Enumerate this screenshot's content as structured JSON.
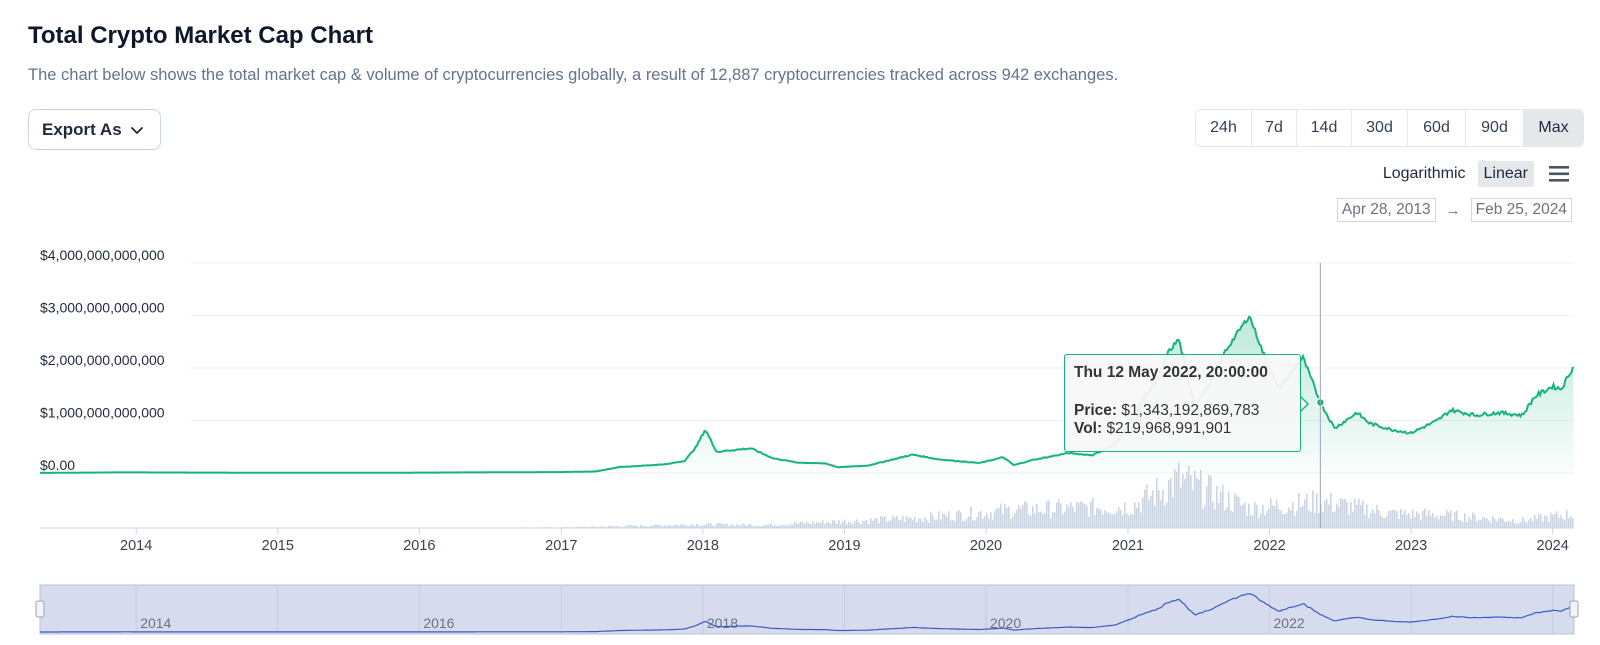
{
  "header": {
    "title": "Total Crypto Market Cap Chart",
    "subtitle": "The chart below shows the total market cap & volume of cryptocurrencies globally, a result of 12,887 cryptocurrencies tracked across 942 exchanges."
  },
  "toolbar": {
    "export_label": "Export As",
    "ranges": [
      "24h",
      "7d",
      "14d",
      "30d",
      "60d",
      "90d",
      "Max"
    ],
    "active_range": "Max",
    "scale_options": [
      "Logarithmic",
      "Linear"
    ],
    "active_scale": "Linear",
    "date_from": "Apr 28, 2013",
    "date_arrow": "→",
    "date_to": "Feb 25, 2024",
    "menu_icon": "hamburger-menu-icon"
  },
  "tooltip": {
    "heading": "Thu 12 May 2022, 20:00:00",
    "price_label": "Price:",
    "price_value": "$1,343,192,869,783",
    "vol_label": "Vol:",
    "vol_value": "$219,968,991,901"
  },
  "colors": {
    "line": "#16b37a",
    "area": "#16b37a",
    "volume": "#cbd5e1",
    "navigator_fill": "#d6dcee",
    "navigator_line": "#3b5bc4"
  },
  "chart_data": {
    "type": "area",
    "title": "Total Crypto Market Cap Chart",
    "y_tick_labels": [
      "$4,000,000,000,000",
      "$3,000,000,000,000",
      "$2,000,000,000,000",
      "$1,000,000,000,000",
      "$0.00"
    ],
    "y_ticks": [
      4000000000000,
      3000000000000,
      2000000000000,
      1000000000000,
      0
    ],
    "ylim": [
      0,
      4000000000000
    ],
    "x_tick_labels": [
      "2014",
      "2015",
      "2016",
      "2017",
      "2018",
      "2019",
      "2020",
      "2021",
      "2022",
      "2023",
      "2024"
    ],
    "xlim": [
      "2013-04-28",
      "2024-02-25"
    ],
    "navigator_labels": [
      "2014",
      "2016",
      "2018",
      "2020",
      "2022"
    ],
    "grid": true,
    "series": [
      {
        "name": "Price",
        "x": [
          "2013-04-28",
          "2013-12-01",
          "2014-06-01",
          "2015-01-01",
          "2015-06-01",
          "2016-01-01",
          "2016-06-01",
          "2017-01-01",
          "2017-04-01",
          "2017-06-01",
          "2017-08-01",
          "2017-10-01",
          "2017-11-15",
          "2017-12-15",
          "2018-01-07",
          "2018-02-06",
          "2018-03-10",
          "2018-05-05",
          "2018-07-01",
          "2018-09-01",
          "2018-11-15",
          "2018-12-15",
          "2019-03-01",
          "2019-06-26",
          "2019-09-01",
          "2019-12-15",
          "2020-02-14",
          "2020-03-13",
          "2020-05-01",
          "2020-08-01",
          "2020-10-01",
          "2020-12-01",
          "2021-01-08",
          "2021-02-21",
          "2021-03-15",
          "2021-04-15",
          "2021-05-12",
          "2021-06-22",
          "2021-08-01",
          "2021-09-07",
          "2021-11-10",
          "2021-12-15",
          "2022-01-24",
          "2022-03-28",
          "2022-05-12",
          "2022-06-18",
          "2022-08-14",
          "2022-09-15",
          "2022-11-09",
          "2022-12-31",
          "2023-03-10",
          "2023-04-14",
          "2023-06-15",
          "2023-08-15",
          "2023-10-15",
          "2023-11-15",
          "2023-12-31",
          "2024-01-23",
          "2024-02-25"
        ],
        "values": [
          1500000000,
          12000000000,
          8000000000,
          5000000000,
          4000000000,
          7000000000,
          12000000000,
          18000000000,
          30000000000,
          115000000000,
          140000000000,
          170000000000,
          230000000000,
          500000000000,
          830000000000,
          400000000000,
          430000000000,
          470000000000,
          280000000000,
          200000000000,
          180000000000,
          110000000000,
          140000000000,
          350000000000,
          260000000000,
          190000000000,
          300000000000,
          150000000000,
          250000000000,
          380000000000,
          340000000000,
          550000000000,
          1000000000000,
          1550000000000,
          1700000000000,
          2300000000000,
          2550000000000,
          1300000000000,
          1700000000000,
          2300000000000,
          3000000000000,
          2300000000000,
          1600000000000,
          2200000000000,
          1343192869783,
          850000000000,
          1150000000000,
          950000000000,
          830000000000,
          760000000000,
          1000000000000,
          1200000000000,
          1100000000000,
          1150000000000,
          1100000000000,
          1450000000000,
          1650000000000,
          1600000000000,
          2050000000000
        ]
      },
      {
        "name": "Vol",
        "x": [
          "2013-04-28",
          "2017-01-01",
          "2017-12-15",
          "2018-06-01",
          "2019-06-26",
          "2020-03-13",
          "2021-01-08",
          "2021-05-12",
          "2021-11-10",
          "2022-05-12",
          "2022-11-09",
          "2023-03-10",
          "2023-10-15",
          "2024-02-25"
        ],
        "values": [
          1000000000,
          5000000000,
          30000000000,
          25000000000,
          80000000000,
          150000000000,
          180000000000,
          400000000000,
          160000000000,
          219968991901,
          120000000000,
          110000000000,
          60000000000,
          120000000000
        ]
      }
    ]
  }
}
